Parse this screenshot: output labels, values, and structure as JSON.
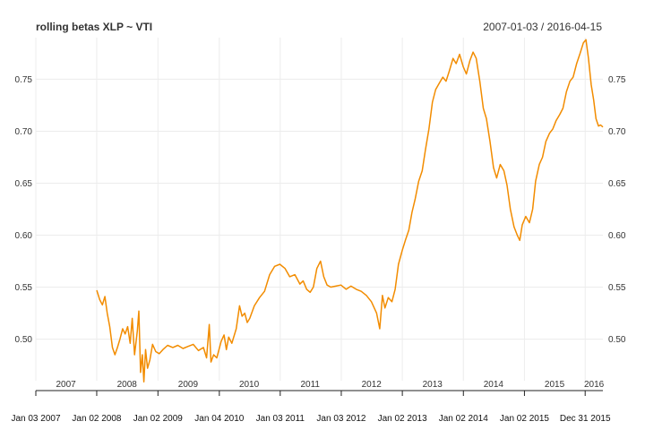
{
  "chart_data": {
    "type": "line",
    "title": "rolling betas XLP ~ VTI",
    "date_range": "2007-01-03 / 2016-04-15",
    "xlabel": "",
    "ylabel": "",
    "xlim": [
      "2007-01-03",
      "2016-04-15"
    ],
    "ylim": [
      0.46,
      0.79
    ],
    "grid": true,
    "legend": "none",
    "y_ticks": [
      0.5,
      0.55,
      0.6,
      0.65,
      0.7,
      0.75
    ],
    "y_tick_labels": [
      "0.50",
      "0.55",
      "0.60",
      "0.65",
      "0.70",
      "0.75"
    ],
    "year_labels": [
      {
        "date": "2007-07-02",
        "label": "2007"
      },
      {
        "date": "2008-07-01",
        "label": "2008"
      },
      {
        "date": "2009-07-01",
        "label": "2009"
      },
      {
        "date": "2010-07-01",
        "label": "2010"
      },
      {
        "date": "2011-07-01",
        "label": "2011"
      },
      {
        "date": "2012-07-02",
        "label": "2012"
      },
      {
        "date": "2013-07-01",
        "label": "2013"
      },
      {
        "date": "2014-07-01",
        "label": "2014"
      },
      {
        "date": "2015-07-01",
        "label": "2015"
      },
      {
        "date": "2016-02-22",
        "label": "2016"
      }
    ],
    "date_ticks": [
      {
        "date": "2007-01-03",
        "label": "Jan 03 2007"
      },
      {
        "date": "2008-01-02",
        "label": "Jan 02 2008"
      },
      {
        "date": "2009-01-02",
        "label": "Jan 02 2009"
      },
      {
        "date": "2010-01-04",
        "label": "Jan 04 2010"
      },
      {
        "date": "2011-01-03",
        "label": "Jan 03 2011"
      },
      {
        "date": "2012-01-03",
        "label": "Jan 03 2012"
      },
      {
        "date": "2013-01-02",
        "label": "Jan 02 2013"
      },
      {
        "date": "2014-01-02",
        "label": "Jan 02 2014"
      },
      {
        "date": "2015-01-02",
        "label": "Jan 02 2015"
      },
      {
        "date": "2015-12-31",
        "label": "Dec 31 2015"
      }
    ],
    "series": [
      {
        "color": "#f28c00",
        "points": [
          [
            "2008-01-02",
            0.547
          ],
          [
            "2008-01-20",
            0.538
          ],
          [
            "2008-02-05",
            0.533
          ],
          [
            "2008-02-20",
            0.541
          ],
          [
            "2008-03-05",
            0.525
          ],
          [
            "2008-03-20",
            0.512
          ],
          [
            "2008-04-05",
            0.492
          ],
          [
            "2008-04-20",
            0.485
          ],
          [
            "2008-05-05",
            0.492
          ],
          [
            "2008-05-20",
            0.5
          ],
          [
            "2008-06-05",
            0.51
          ],
          [
            "2008-06-20",
            0.505
          ],
          [
            "2008-07-05",
            0.512
          ],
          [
            "2008-07-20",
            0.496
          ],
          [
            "2008-08-01",
            0.52
          ],
          [
            "2008-08-15",
            0.485
          ],
          [
            "2008-09-01",
            0.508
          ],
          [
            "2008-09-10",
            0.527
          ],
          [
            "2008-09-20",
            0.468
          ],
          [
            "2008-10-01",
            0.485
          ],
          [
            "2008-10-10",
            0.459
          ],
          [
            "2008-10-20",
            0.49
          ],
          [
            "2008-11-01",
            0.472
          ],
          [
            "2008-11-15",
            0.48
          ],
          [
            "2008-12-01",
            0.495
          ],
          [
            "2008-12-20",
            0.488
          ],
          [
            "2009-01-10",
            0.486
          ],
          [
            "2009-02-01",
            0.49
          ],
          [
            "2009-03-01",
            0.494
          ],
          [
            "2009-04-01",
            0.492
          ],
          [
            "2009-05-01",
            0.494
          ],
          [
            "2009-06-01",
            0.491
          ],
          [
            "2009-07-01",
            0.493
          ],
          [
            "2009-08-01",
            0.495
          ],
          [
            "2009-09-01",
            0.489
          ],
          [
            "2009-10-01",
            0.492
          ],
          [
            "2009-10-20",
            0.482
          ],
          [
            "2009-11-05",
            0.514
          ],
          [
            "2009-11-15",
            0.478
          ],
          [
            "2009-12-01",
            0.485
          ],
          [
            "2009-12-20",
            0.482
          ],
          [
            "2010-01-15",
            0.498
          ],
          [
            "2010-02-01",
            0.504
          ],
          [
            "2010-02-15",
            0.49
          ],
          [
            "2010-03-01",
            0.502
          ],
          [
            "2010-03-20",
            0.496
          ],
          [
            "2010-04-15",
            0.51
          ],
          [
            "2010-05-05",
            0.532
          ],
          [
            "2010-05-20",
            0.522
          ],
          [
            "2010-06-05",
            0.525
          ],
          [
            "2010-06-20",
            0.516
          ],
          [
            "2010-07-05",
            0.52
          ],
          [
            "2010-08-01",
            0.532
          ],
          [
            "2010-09-01",
            0.54
          ],
          [
            "2010-10-01",
            0.546
          ],
          [
            "2010-11-01",
            0.562
          ],
          [
            "2010-12-01",
            0.57
          ],
          [
            "2011-01-01",
            0.572
          ],
          [
            "2011-02-01",
            0.568
          ],
          [
            "2011-03-01",
            0.56
          ],
          [
            "2011-04-01",
            0.562
          ],
          [
            "2011-05-01",
            0.553
          ],
          [
            "2011-05-20",
            0.556
          ],
          [
            "2011-06-10",
            0.548
          ],
          [
            "2011-07-01",
            0.545
          ],
          [
            "2011-07-20",
            0.55
          ],
          [
            "2011-08-10",
            0.568
          ],
          [
            "2011-09-01",
            0.575
          ],
          [
            "2011-09-20",
            0.56
          ],
          [
            "2011-10-10",
            0.552
          ],
          [
            "2011-11-01",
            0.55
          ],
          [
            "2011-12-01",
            0.551
          ],
          [
            "2012-01-01",
            0.552
          ],
          [
            "2012-02-01",
            0.548
          ],
          [
            "2012-03-01",
            0.551
          ],
          [
            "2012-04-01",
            0.548
          ],
          [
            "2012-05-01",
            0.546
          ],
          [
            "2012-06-01",
            0.542
          ],
          [
            "2012-07-01",
            0.536
          ],
          [
            "2012-08-01",
            0.525
          ],
          [
            "2012-08-20",
            0.51
          ],
          [
            "2012-09-05",
            0.542
          ],
          [
            "2012-09-20",
            0.53
          ],
          [
            "2012-10-10",
            0.54
          ],
          [
            "2012-11-01",
            0.536
          ],
          [
            "2012-11-20",
            0.548
          ],
          [
            "2012-12-10",
            0.572
          ],
          [
            "2013-01-01",
            0.585
          ],
          [
            "2013-01-20",
            0.595
          ],
          [
            "2013-02-10",
            0.605
          ],
          [
            "2013-03-01",
            0.622
          ],
          [
            "2013-03-20",
            0.635
          ],
          [
            "2013-04-10",
            0.652
          ],
          [
            "2013-05-01",
            0.662
          ],
          [
            "2013-05-20",
            0.682
          ],
          [
            "2013-06-10",
            0.702
          ],
          [
            "2013-07-01",
            0.728
          ],
          [
            "2013-07-20",
            0.74
          ],
          [
            "2013-08-10",
            0.746
          ],
          [
            "2013-09-01",
            0.752
          ],
          [
            "2013-09-20",
            0.748
          ],
          [
            "2013-10-10",
            0.758
          ],
          [
            "2013-11-01",
            0.77
          ],
          [
            "2013-11-20",
            0.765
          ],
          [
            "2013-12-10",
            0.774
          ],
          [
            "2014-01-01",
            0.762
          ],
          [
            "2014-01-20",
            0.755
          ],
          [
            "2014-02-10",
            0.768
          ],
          [
            "2014-03-01",
            0.776
          ],
          [
            "2014-03-20",
            0.77
          ],
          [
            "2014-04-10",
            0.748
          ],
          [
            "2014-05-01",
            0.722
          ],
          [
            "2014-05-20",
            0.712
          ],
          [
            "2014-06-10",
            0.69
          ],
          [
            "2014-07-01",
            0.665
          ],
          [
            "2014-07-20",
            0.655
          ],
          [
            "2014-08-10",
            0.668
          ],
          [
            "2014-09-01",
            0.662
          ],
          [
            "2014-09-20",
            0.648
          ],
          [
            "2014-10-10",
            0.625
          ],
          [
            "2014-11-01",
            0.608
          ],
          [
            "2014-11-20",
            0.6
          ],
          [
            "2014-12-05",
            0.595
          ],
          [
            "2014-12-20",
            0.61
          ],
          [
            "2015-01-10",
            0.618
          ],
          [
            "2015-02-01",
            0.612
          ],
          [
            "2015-02-20",
            0.625
          ],
          [
            "2015-03-10",
            0.652
          ],
          [
            "2015-04-01",
            0.668
          ],
          [
            "2015-04-20",
            0.675
          ],
          [
            "2015-05-10",
            0.69
          ],
          [
            "2015-06-01",
            0.698
          ],
          [
            "2015-06-20",
            0.702
          ],
          [
            "2015-07-10",
            0.71
          ],
          [
            "2015-08-01",
            0.716
          ],
          [
            "2015-08-20",
            0.722
          ],
          [
            "2015-09-10",
            0.738
          ],
          [
            "2015-10-01",
            0.748
          ],
          [
            "2015-10-20",
            0.752
          ],
          [
            "2015-11-10",
            0.765
          ],
          [
            "2015-12-01",
            0.775
          ],
          [
            "2015-12-20",
            0.785
          ],
          [
            "2016-01-05",
            0.788
          ],
          [
            "2016-01-20",
            0.77
          ],
          [
            "2016-02-05",
            0.745
          ],
          [
            "2016-02-20",
            0.73
          ],
          [
            "2016-03-05",
            0.712
          ],
          [
            "2016-03-20",
            0.705
          ],
          [
            "2016-04-01",
            0.706
          ],
          [
            "2016-04-15",
            0.704
          ]
        ]
      }
    ]
  }
}
